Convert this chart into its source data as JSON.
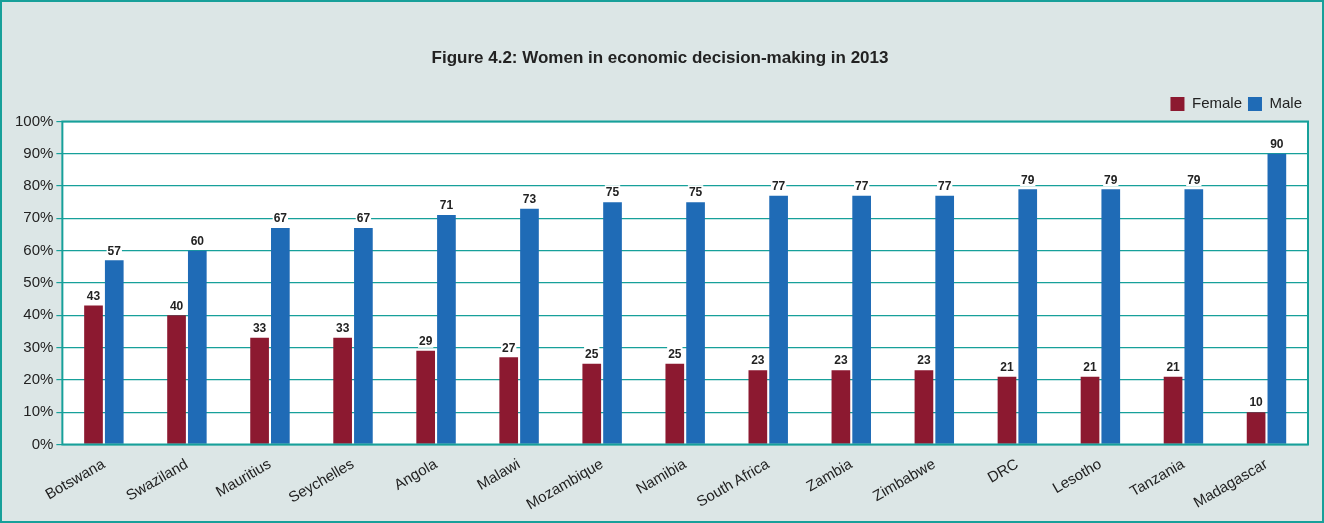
{
  "chart_data": {
    "type": "bar",
    "title": "Figure 4.2: Women in economic decision-making in 2013",
    "categories": [
      "Botswana",
      "Swaziland",
      "Mauritius",
      "Seychelles",
      "Angola",
      "Malawi",
      "Mozambique",
      "Namibia",
      "South Africa",
      "Zambia",
      "Zimbabwe",
      "DRC",
      "Lesotho",
      "Tanzania",
      "Madagascar"
    ],
    "series": [
      {
        "name": "Female",
        "color": "#8c1930",
        "values": [
          43,
          40,
          33,
          33,
          29,
          27,
          25,
          25,
          23,
          23,
          23,
          21,
          21,
          21,
          10
        ]
      },
      {
        "name": "Male",
        "color": "#1f6bb6",
        "values": [
          57,
          60,
          67,
          67,
          71,
          73,
          75,
          75,
          77,
          77,
          77,
          79,
          79,
          79,
          90
        ]
      }
    ],
    "ylim": [
      0,
      100
    ],
    "yticks": [
      {
        "value": 0,
        "label": "0%"
      },
      {
        "value": 10,
        "label": "10%"
      },
      {
        "value": 20,
        "label": "20%"
      },
      {
        "value": 30,
        "label": "30%"
      },
      {
        "value": 40,
        "label": "40%"
      },
      {
        "value": 50,
        "label": "50%"
      },
      {
        "value": 60,
        "label": "60%"
      },
      {
        "value": 70,
        "label": "70%"
      },
      {
        "value": 80,
        "label": "80%"
      },
      {
        "value": 90,
        "label": "90%"
      },
      {
        "value": 100,
        "label": "100%"
      }
    ],
    "grid": "y",
    "legend": "top right",
    "data_labels": true
  }
}
